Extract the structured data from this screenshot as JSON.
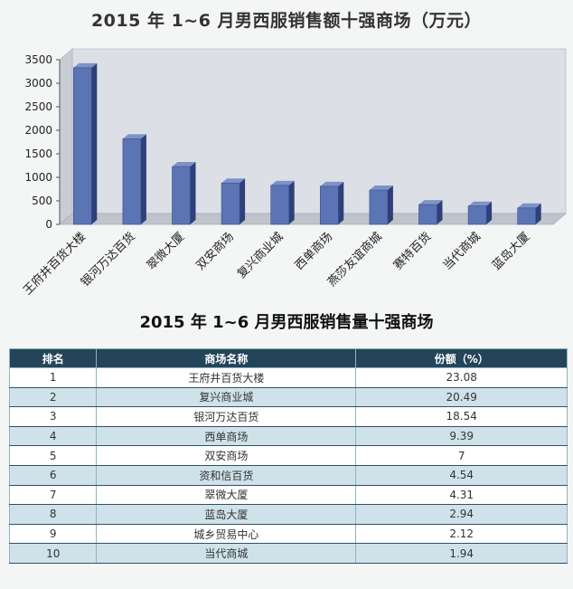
{
  "chart_title": "2015 年 1~6 月男西服销售额十强商场（万元）",
  "table_title": "2015 年 1~6 月男西服销售量十强商场",
  "colors": {
    "bar_face": "#5b74b4",
    "bar_side": "#2e4079",
    "bar_top": "#7d92c8",
    "table_header": "#24445a",
    "row_alt": "#cfe2ea"
  },
  "chart_data": {
    "type": "bar",
    "title": "2015 年 1~6 月男西服销售额十强商场（万元）",
    "categories": [
      "王府井百货大楼",
      "银河万达百货",
      "翠微大厦",
      "双安商场",
      "复兴商业城",
      "西单商场",
      "燕莎友谊商城",
      "赛特百货",
      "当代商城",
      "蓝岛大厦"
    ],
    "values": [
      3330,
      1820,
      1230,
      880,
      830,
      810,
      730,
      420,
      390,
      350
    ],
    "y_ticks": [
      "0",
      "500",
      "1000",
      "1500",
      "2000",
      "2500",
      "3000",
      "3500"
    ],
    "ylim": [
      0,
      3500
    ],
    "grid": false,
    "legend": "none",
    "bar_style": "3d"
  },
  "table": {
    "headers": [
      "排名",
      "商场名称",
      "份额（%）"
    ],
    "rows": [
      [
        "1",
        "王府井百货大楼",
        "23.08"
      ],
      [
        "2",
        "复兴商业城",
        "20.49"
      ],
      [
        "3",
        "银河万达百货",
        "18.54"
      ],
      [
        "4",
        "西单商场",
        "9.39"
      ],
      [
        "5",
        "双安商场",
        "7"
      ],
      [
        "6",
        "资和信百货",
        "4.54"
      ],
      [
        "7",
        "翠微大厦",
        "4.31"
      ],
      [
        "8",
        "蓝岛大厦",
        "2.94"
      ],
      [
        "9",
        "城乡贸易中心",
        "2.12"
      ],
      [
        "10",
        "当代商城",
        "1.94"
      ]
    ]
  }
}
